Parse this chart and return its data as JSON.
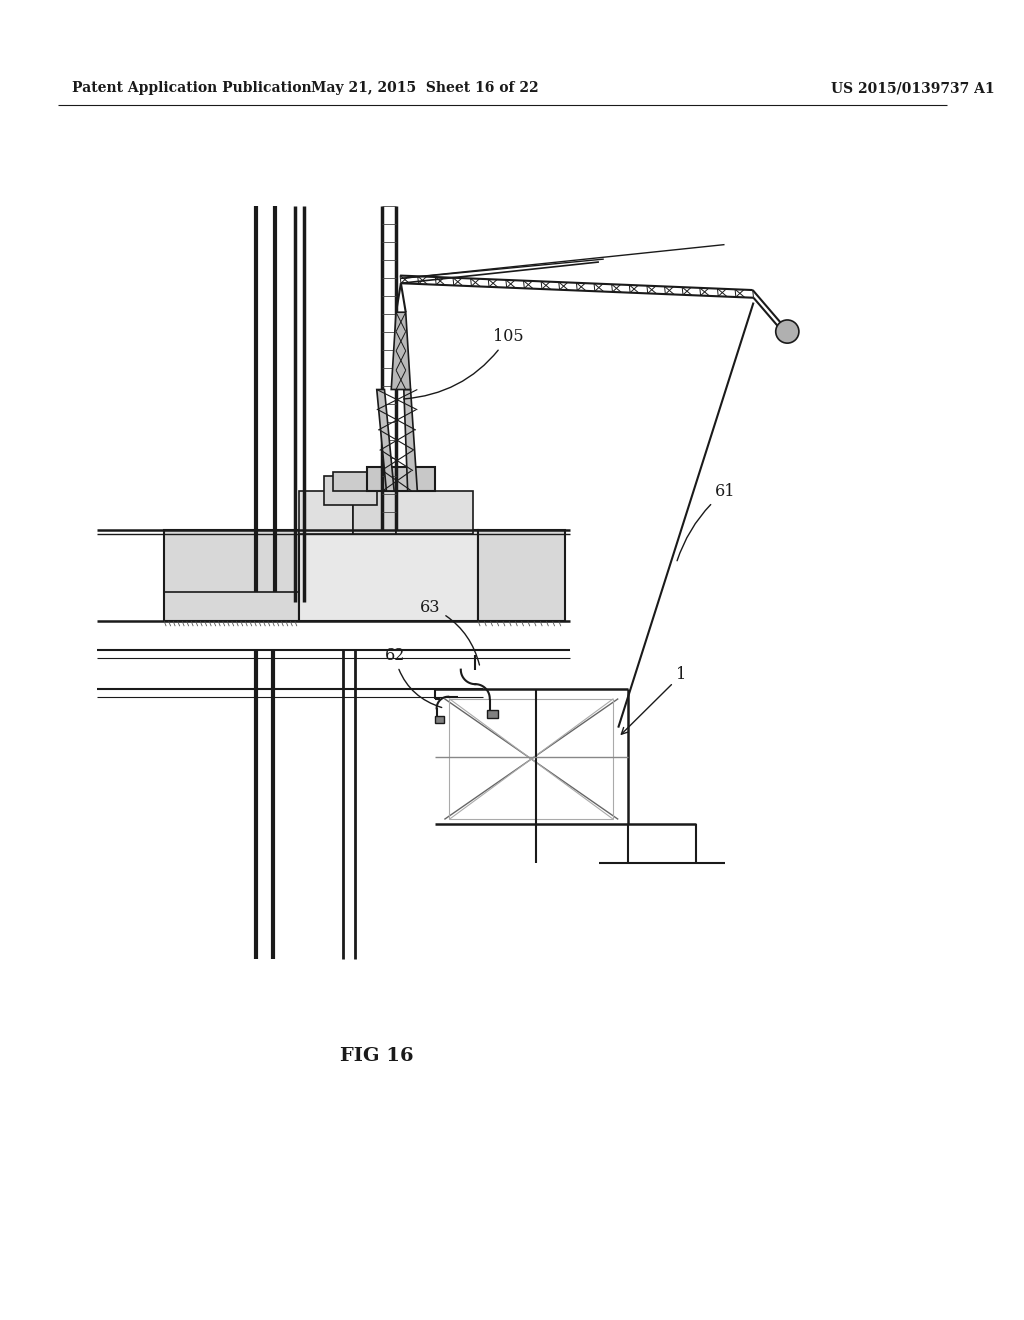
{
  "title_left": "Patent Application Publication",
  "title_mid": "May 21, 2015  Sheet 16 of 22",
  "title_right": "US 2015/0139737 A1",
  "fig_caption": "FIG 16",
  "bg_color": "#ffffff",
  "line_color": "#1a1a1a",
  "gray_light": "#d8d8d8",
  "gray_mid": "#b0b0b0",
  "gray_dark": "#606060"
}
